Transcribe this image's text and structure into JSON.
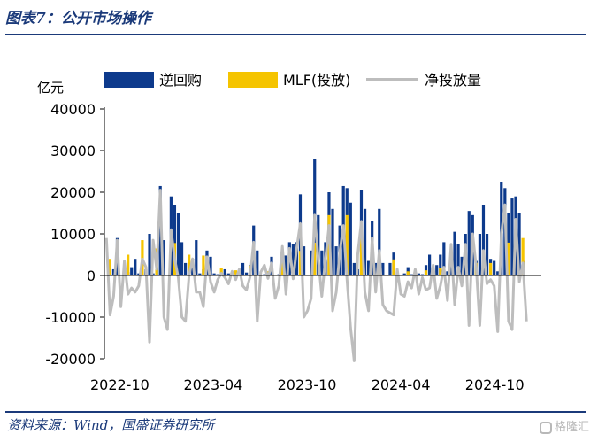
{
  "header": {
    "title": "图表7：公开市场操作"
  },
  "footer": {
    "source": "资料来源：Wind，国盛证券研究所",
    "watermark": "格隆汇"
  },
  "colors": {
    "reverse_repo": "#0d3a8c",
    "mlf": "#f5c400",
    "net": "#bdbdbd",
    "brand": "#1b3a7a"
  },
  "chart_data": {
    "type": "bar",
    "ylabel": "亿元",
    "ylim": [
      -20000,
      40000
    ],
    "yticks": [
      -20000,
      -10000,
      0,
      10000,
      20000,
      30000,
      40000
    ],
    "ytick_labels": [
      "-20000",
      "-10000",
      "0",
      "10000",
      "20000",
      "30000",
      "40000"
    ],
    "x_range": [
      "2022-09",
      "2024-12"
    ],
    "xtick_labels": [
      "2022-10",
      "2023-04",
      "2023-10",
      "2024-04",
      "2024-10"
    ],
    "xtick_dates": [
      "2022-10",
      "2023-04",
      "2023-10",
      "2024-04",
      "2024-10"
    ],
    "legend_position": "top",
    "series": [
      {
        "name": "逆回购",
        "kind": "bar",
        "values": [
          [
            "2022-09-05",
            0
          ],
          [
            "2022-09-12",
            3000
          ],
          [
            "2022-09-19",
            1500
          ],
          [
            "2022-09-26",
            9000
          ],
          [
            "2022-10-03",
            0
          ],
          [
            "2022-10-10",
            500
          ],
          [
            "2022-10-17",
            800
          ],
          [
            "2022-10-24",
            2000
          ],
          [
            "2022-10-31",
            4000
          ],
          [
            "2022-11-07",
            500
          ],
          [
            "2022-11-14",
            900
          ],
          [
            "2022-11-21",
            1500
          ],
          [
            "2022-11-28",
            10000
          ],
          [
            "2022-12-05",
            500
          ],
          [
            "2022-12-12",
            2000
          ],
          [
            "2022-12-19",
            21500
          ],
          [
            "2022-12-26",
            8500
          ],
          [
            "2023-01-02",
            0
          ],
          [
            "2023-01-09",
            19000
          ],
          [
            "2023-01-16",
            17000
          ],
          [
            "2023-01-23",
            15000
          ],
          [
            "2023-01-30",
            8000
          ],
          [
            "2023-02-06",
            3000
          ],
          [
            "2023-02-13",
            1500
          ],
          [
            "2023-02-20",
            4000
          ],
          [
            "2023-02-27",
            8500
          ],
          [
            "2023-03-06",
            500
          ],
          [
            "2023-03-13",
            1500
          ],
          [
            "2023-03-20",
            6000
          ],
          [
            "2023-03-27",
            4500
          ],
          [
            "2023-04-03",
            500
          ],
          [
            "2023-04-10",
            300
          ],
          [
            "2023-04-17",
            700
          ],
          [
            "2023-04-24",
            1500
          ],
          [
            "2023-05-01",
            500
          ],
          [
            "2023-05-08",
            200
          ],
          [
            "2023-05-15",
            300
          ],
          [
            "2023-05-22",
            1000
          ],
          [
            "2023-05-29",
            3000
          ],
          [
            "2023-06-05",
            700
          ],
          [
            "2023-06-12",
            2500
          ],
          [
            "2023-06-19",
            12000
          ],
          [
            "2023-06-26",
            6000
          ],
          [
            "2023-07-03",
            200
          ],
          [
            "2023-07-10",
            300
          ],
          [
            "2023-07-17",
            300
          ],
          [
            "2023-07-24",
            4500
          ],
          [
            "2023-07-31",
            200
          ],
          [
            "2023-08-07",
            300
          ],
          [
            "2023-08-14",
            3000
          ],
          [
            "2023-08-21",
            4800
          ],
          [
            "2023-08-28",
            8000
          ],
          [
            "2023-09-04",
            7500
          ],
          [
            "2023-09-11",
            8000
          ],
          [
            "2023-09-18",
            19500
          ],
          [
            "2023-09-25",
            7000
          ],
          [
            "2023-10-02",
            0
          ],
          [
            "2023-10-09",
            6000
          ],
          [
            "2023-10-16",
            28000
          ],
          [
            "2023-10-23",
            14500
          ],
          [
            "2023-10-30",
            6000
          ],
          [
            "2023-11-06",
            8000
          ],
          [
            "2023-11-13",
            20000
          ],
          [
            "2023-11-20",
            16000
          ],
          [
            "2023-11-27",
            7000
          ],
          [
            "2023-12-04",
            12000
          ],
          [
            "2023-12-11",
            21500
          ],
          [
            "2023-12-18",
            21000
          ],
          [
            "2023-12-25",
            17500
          ],
          [
            "2024-01-01",
            3000
          ],
          [
            "2024-01-08",
            1500
          ],
          [
            "2024-01-15",
            20500
          ],
          [
            "2024-01-22",
            16000
          ],
          [
            "2024-01-29",
            3500
          ],
          [
            "2024-02-05",
            13000
          ],
          [
            "2024-02-12",
            3000
          ],
          [
            "2024-02-19",
            16000
          ],
          [
            "2024-02-26",
            3000
          ],
          [
            "2024-03-04",
            200
          ],
          [
            "2024-03-11",
            3000
          ],
          [
            "2024-03-18",
            5500
          ],
          [
            "2024-03-25",
            500
          ],
          [
            "2024-04-01",
            200
          ],
          [
            "2024-04-08",
            500
          ],
          [
            "2024-04-15",
            2000
          ],
          [
            "2024-04-22",
            300
          ],
          [
            "2024-04-29",
            1200
          ],
          [
            "2024-05-06",
            500
          ],
          [
            "2024-05-13",
            300
          ],
          [
            "2024-05-20",
            2500
          ],
          [
            "2024-05-27",
            5000
          ],
          [
            "2024-06-03",
            300
          ],
          [
            "2024-06-10",
            2500
          ],
          [
            "2024-06-17",
            5000
          ],
          [
            "2024-06-24",
            8000
          ],
          [
            "2024-07-01",
            1000
          ],
          [
            "2024-07-08",
            2500
          ],
          [
            "2024-07-15",
            10500
          ],
          [
            "2024-07-22",
            7500
          ],
          [
            "2024-07-29",
            4500
          ],
          [
            "2024-08-05",
            10000
          ],
          [
            "2024-08-12",
            15500
          ],
          [
            "2024-08-19",
            14500
          ],
          [
            "2024-08-26",
            3500
          ],
          [
            "2024-09-02",
            10000
          ],
          [
            "2024-09-09",
            17000
          ],
          [
            "2024-09-16",
            10000
          ],
          [
            "2024-09-23",
            4000
          ],
          [
            "2024-09-30",
            3500
          ],
          [
            "2024-10-07",
            1000
          ],
          [
            "2024-10-14",
            22500
          ],
          [
            "2024-10-21",
            21000
          ],
          [
            "2024-10-28",
            15000
          ],
          [
            "2024-11-04",
            18500
          ],
          [
            "2024-11-11",
            19000
          ],
          [
            "2024-11-18",
            15000
          ],
          [
            "2024-11-25",
            3500
          ]
        ]
      },
      {
        "name": "MLF(投放)",
        "kind": "bar",
        "values": [
          [
            "2022-09-12",
            4000
          ],
          [
            "2022-10-17",
            5000
          ],
          [
            "2022-11-14",
            8500
          ],
          [
            "2022-12-12",
            6500
          ],
          [
            "2023-01-16",
            7800
          ],
          [
            "2023-02-13",
            5000
          ],
          [
            "2023-03-13",
            4800
          ],
          [
            "2023-04-17",
            1700
          ],
          [
            "2023-05-15",
            1250
          ],
          [
            "2023-06-12",
            2370
          ],
          [
            "2023-07-17",
            1030
          ],
          [
            "2023-08-14",
            4010
          ],
          [
            "2023-09-18",
            5910
          ],
          [
            "2023-10-16",
            7890
          ],
          [
            "2023-11-13",
            14500
          ],
          [
            "2023-12-18",
            14500
          ],
          [
            "2024-01-15",
            9950
          ],
          [
            "2024-02-19",
            5000
          ],
          [
            "2024-03-18",
            3870
          ],
          [
            "2024-04-15",
            1000
          ],
          [
            "2024-05-20",
            1250
          ],
          [
            "2024-06-17",
            1820
          ],
          [
            "2024-07-22",
            1000
          ],
          [
            "2024-08-26",
            3000
          ],
          [
            "2024-09-23",
            3000
          ],
          [
            "2024-10-28",
            7890
          ],
          [
            "2024-11-25",
            9000
          ]
        ]
      },
      {
        "name": "净投放量",
        "kind": "line",
        "values": [
          [
            "2022-09-05",
            9000
          ],
          [
            "2022-09-12",
            -9500
          ],
          [
            "2022-09-19",
            -5000
          ],
          [
            "2022-09-26",
            8500
          ],
          [
            "2022-10-03",
            -7500
          ],
          [
            "2022-10-10",
            3500
          ],
          [
            "2022-10-17",
            -4500
          ],
          [
            "2022-10-24",
            -3000
          ],
          [
            "2022-10-31",
            -4000
          ],
          [
            "2022-11-07",
            -2500
          ],
          [
            "2022-11-14",
            4000
          ],
          [
            "2022-11-21",
            2000
          ],
          [
            "2022-11-28",
            -16000
          ],
          [
            "2022-12-05",
            8500
          ],
          [
            "2022-12-12",
            1500
          ],
          [
            "2022-12-19",
            20500
          ],
          [
            "2022-12-26",
            -10000
          ],
          [
            "2023-01-02",
            -13000
          ],
          [
            "2023-01-09",
            11000
          ],
          [
            "2023-01-16",
            4000
          ],
          [
            "2023-01-23",
            -500
          ],
          [
            "2023-01-30",
            -10000
          ],
          [
            "2023-02-06",
            -11000
          ],
          [
            "2023-02-13",
            0
          ],
          [
            "2023-02-20",
            4000
          ],
          [
            "2023-02-27",
            -4000
          ],
          [
            "2023-03-06",
            -4000
          ],
          [
            "2023-03-13",
            -7500
          ],
          [
            "2023-03-20",
            4500
          ],
          [
            "2023-03-27",
            -1500
          ],
          [
            "2023-04-03",
            -4000
          ],
          [
            "2023-04-10",
            -1000
          ],
          [
            "2023-04-17",
            500
          ],
          [
            "2023-04-24",
            -500
          ],
          [
            "2023-05-01",
            -2000
          ],
          [
            "2023-05-08",
            1000
          ],
          [
            "2023-05-15",
            -1000
          ],
          [
            "2023-05-22",
            1500
          ],
          [
            "2023-05-29",
            -2500
          ],
          [
            "2023-06-05",
            -3500
          ],
          [
            "2023-06-12",
            -300
          ],
          [
            "2023-06-19",
            8000
          ],
          [
            "2023-06-26",
            -11000
          ],
          [
            "2023-07-03",
            800
          ],
          [
            "2023-07-10",
            2500
          ],
          [
            "2023-07-17",
            -700
          ],
          [
            "2023-07-24",
            3000
          ],
          [
            "2023-07-31",
            -5500
          ],
          [
            "2023-08-07",
            -2500
          ],
          [
            "2023-08-14",
            7000
          ],
          [
            "2023-08-21",
            -4500
          ],
          [
            "2023-08-28",
            6500
          ],
          [
            "2023-09-04",
            -800
          ],
          [
            "2023-09-11",
            6500
          ],
          [
            "2023-09-18",
            12500
          ],
          [
            "2023-09-25",
            -10000
          ],
          [
            "2023-10-02",
            -8500
          ],
          [
            "2023-10-09",
            -5500
          ],
          [
            "2023-10-16",
            14500
          ],
          [
            "2023-10-23",
            4000
          ],
          [
            "2023-10-30",
            -5000
          ],
          [
            "2023-11-06",
            4000
          ],
          [
            "2023-11-13",
            12000
          ],
          [
            "2023-11-20",
            -8500
          ],
          [
            "2023-11-27",
            -4000
          ],
          [
            "2023-12-04",
            5500
          ],
          [
            "2023-12-11",
            12000
          ],
          [
            "2023-12-18",
            -1000
          ],
          [
            "2023-12-25",
            -12500
          ],
          [
            "2024-01-01",
            -20500
          ],
          [
            "2024-01-08",
            5000
          ],
          [
            "2024-01-15",
            13000
          ],
          [
            "2024-01-22",
            -4000
          ],
          [
            "2024-01-29",
            -8500
          ],
          [
            "2024-02-05",
            9000
          ],
          [
            "2024-02-12",
            -4000
          ],
          [
            "2024-02-19",
            6000
          ],
          [
            "2024-02-26",
            -7000
          ],
          [
            "2024-03-04",
            -8500
          ],
          [
            "2024-03-11",
            -9000
          ],
          [
            "2024-03-18",
            -9500
          ],
          [
            "2024-03-25",
            1500
          ],
          [
            "2024-04-01",
            -4500
          ],
          [
            "2024-04-08",
            -5000
          ],
          [
            "2024-04-15",
            -1500
          ],
          [
            "2024-04-22",
            -3000
          ],
          [
            "2024-04-29",
            1500
          ],
          [
            "2024-05-06",
            -4500
          ],
          [
            "2024-05-13",
            -500
          ],
          [
            "2024-05-20",
            -3500
          ],
          [
            "2024-05-27",
            -3000
          ],
          [
            "2024-06-03",
            2500
          ],
          [
            "2024-06-10",
            -5500
          ],
          [
            "2024-06-17",
            -2500
          ],
          [
            "2024-06-24",
            2000
          ],
          [
            "2024-07-01",
            -6000
          ],
          [
            "2024-07-08",
            7500
          ],
          [
            "2024-07-15",
            -7000
          ],
          [
            "2024-07-22",
            2000
          ],
          [
            "2024-07-29",
            -2500
          ],
          [
            "2024-08-05",
            7500
          ],
          [
            "2024-08-12",
            -12000
          ],
          [
            "2024-08-19",
            10000
          ],
          [
            "2024-08-26",
            2000
          ],
          [
            "2024-09-02",
            -12000
          ],
          [
            "2024-09-09",
            6000
          ],
          [
            "2024-09-16",
            -2000
          ],
          [
            "2024-09-23",
            -1000
          ],
          [
            "2024-09-30",
            -2500
          ],
          [
            "2024-10-07",
            -13500
          ],
          [
            "2024-10-14",
            10000
          ],
          [
            "2024-10-21",
            17000
          ],
          [
            "2024-10-28",
            -11000
          ],
          [
            "2024-11-04",
            -13000
          ],
          [
            "2024-11-11",
            13500
          ],
          [
            "2024-11-18",
            -1500
          ],
          [
            "2024-11-25",
            3000
          ],
          [
            "2024-12-02",
            -11000
          ]
        ]
      }
    ]
  }
}
